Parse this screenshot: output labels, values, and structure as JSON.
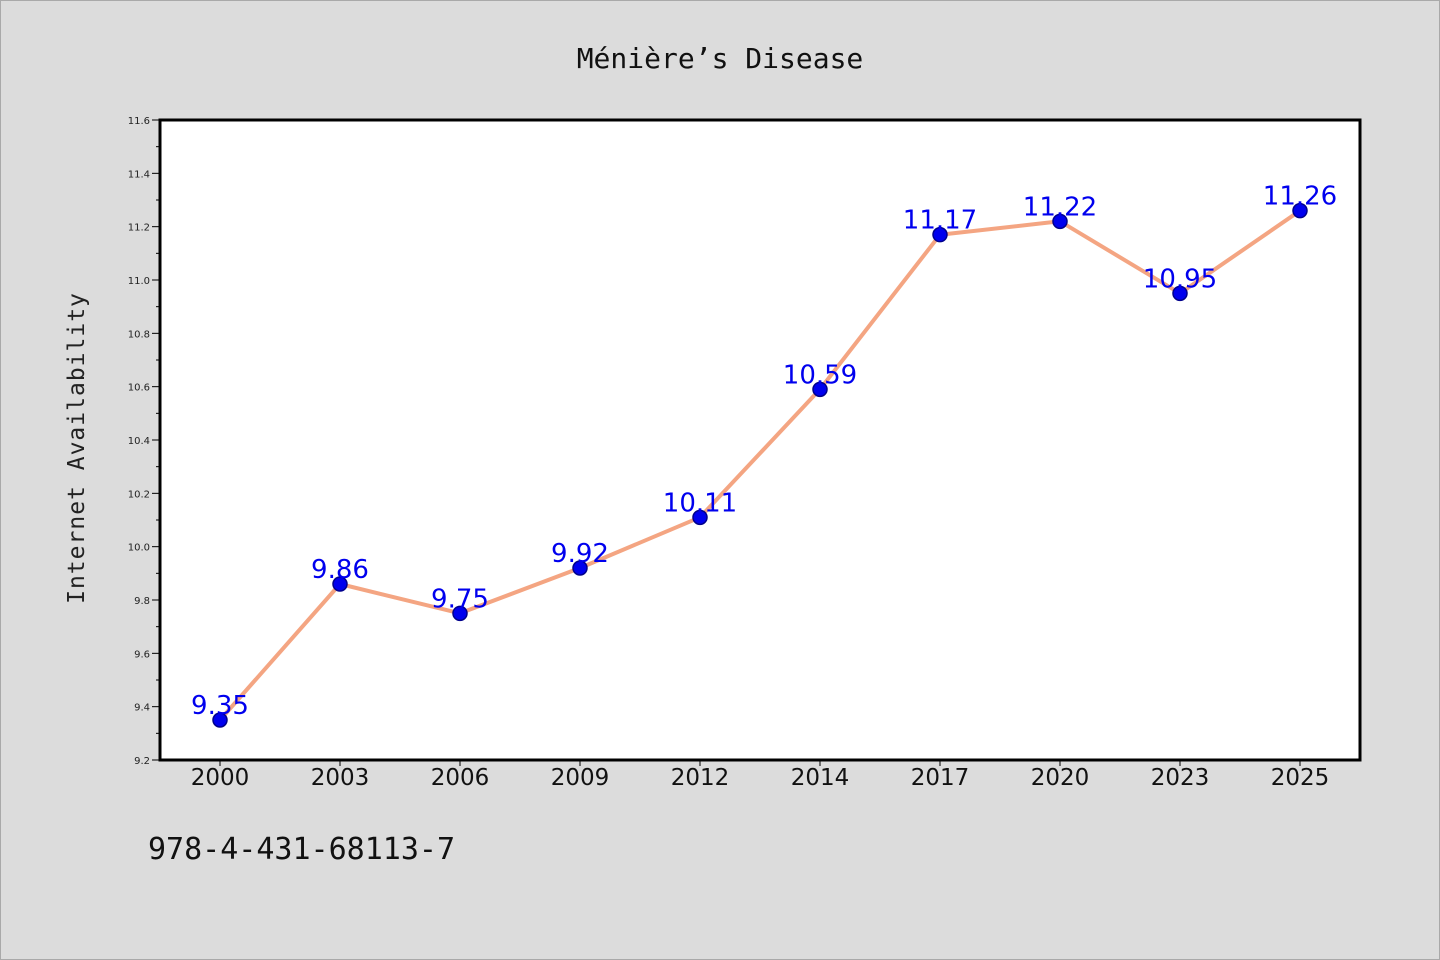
{
  "chart_data": {
    "type": "line",
    "title": "Ménière’s Disease",
    "xlabel": "",
    "ylabel": "Internet Availability",
    "categories": [
      "2000",
      "2003",
      "2006",
      "2009",
      "2012",
      "2014",
      "2017",
      "2020",
      "2023",
      "2025"
    ],
    "series": [
      {
        "values": [
          9.35,
          9.86,
          9.75,
          9.92,
          10.11,
          10.59,
          11.17,
          11.22,
          10.95,
          11.26
        ],
        "data_labels": [
          "9.35",
          "9.86",
          "9.75",
          "9.92",
          "10.11",
          "10.59",
          "11.17",
          "11.22",
          "10.95",
          "11.26"
        ]
      }
    ],
    "ylim": [
      9.2,
      11.6
    ],
    "yticks": [
      "9.2",
      "9.4",
      "9.6",
      "9.8",
      "10.0",
      "10.2",
      "10.4",
      "10.6",
      "10.8",
      "11.0",
      "11.2",
      "11.4",
      "11.6"
    ],
    "grid": false,
    "legend": "none",
    "colors": {
      "line": "#f4a582",
      "marker": "#0000ee",
      "marker_edge": "#00008b",
      "data_label": "#0000ee",
      "plot_background": "#ffffff",
      "figure_background": "#dcdcdc"
    }
  },
  "footnote": "978-4-431-68113-7"
}
